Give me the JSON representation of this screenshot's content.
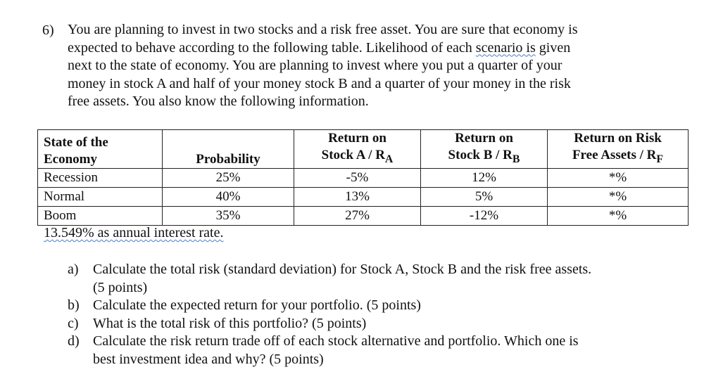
{
  "question": {
    "number": "6)",
    "lines": [
      "You are planning to invest in two stocks and a risk free asset. You are sure that economy is",
      "expected to behave according to the following table. Likelihood of each ",
      "next to the state of economy. You are planning to invest where you put a quarter of your",
      "money in stock A and half of your money stock B and a quarter of your money in the risk",
      "free assets. You also know the following information."
    ],
    "line2_marked": "scenario  is",
    "line2_tail": " given"
  },
  "table": {
    "headers": {
      "state_line1": "State of the",
      "state_line2": "Economy",
      "probability": "Probability",
      "ra_line1": "Return on",
      "ra_line2": "Stock A / R",
      "ra_sub": "A",
      "rb_line1": "Return on",
      "rb_line2": "Stock B / R",
      "rb_sub": "B",
      "rf_line1": "Return on Risk",
      "rf_line2": "Free Assets / R",
      "rf_sub": "F"
    },
    "rows": [
      {
        "state": "Recession",
        "prob": "25%",
        "ra": "-5%",
        "rb": "12%",
        "rf": "*%"
      },
      {
        "state": "Normal",
        "prob": "40%",
        "ra": "13%",
        "rb": "5%",
        "rf": "*%"
      },
      {
        "state": "Boom",
        "prob": "35%",
        "ra": "27%",
        "rb": "-12%",
        "rf": "*%"
      }
    ]
  },
  "note": "13.549% as annual interest rate.",
  "parts": [
    {
      "label": "a)",
      "lines": [
        "Calculate the total risk (standard deviation) for Stock A, Stock B and the risk free assets.",
        "(5 points)"
      ]
    },
    {
      "label": "b)",
      "lines": [
        "Calculate the expected return for your portfolio. (5 points)"
      ]
    },
    {
      "label": "c)",
      "lines": [
        "What is the total risk of this portfolio? (5 points)"
      ]
    },
    {
      "label": "d)",
      "lines": [
        "Calculate the risk return trade off of each stock alternative and portfolio. Which one is",
        "best investment idea and why? (5 points)"
      ]
    }
  ]
}
